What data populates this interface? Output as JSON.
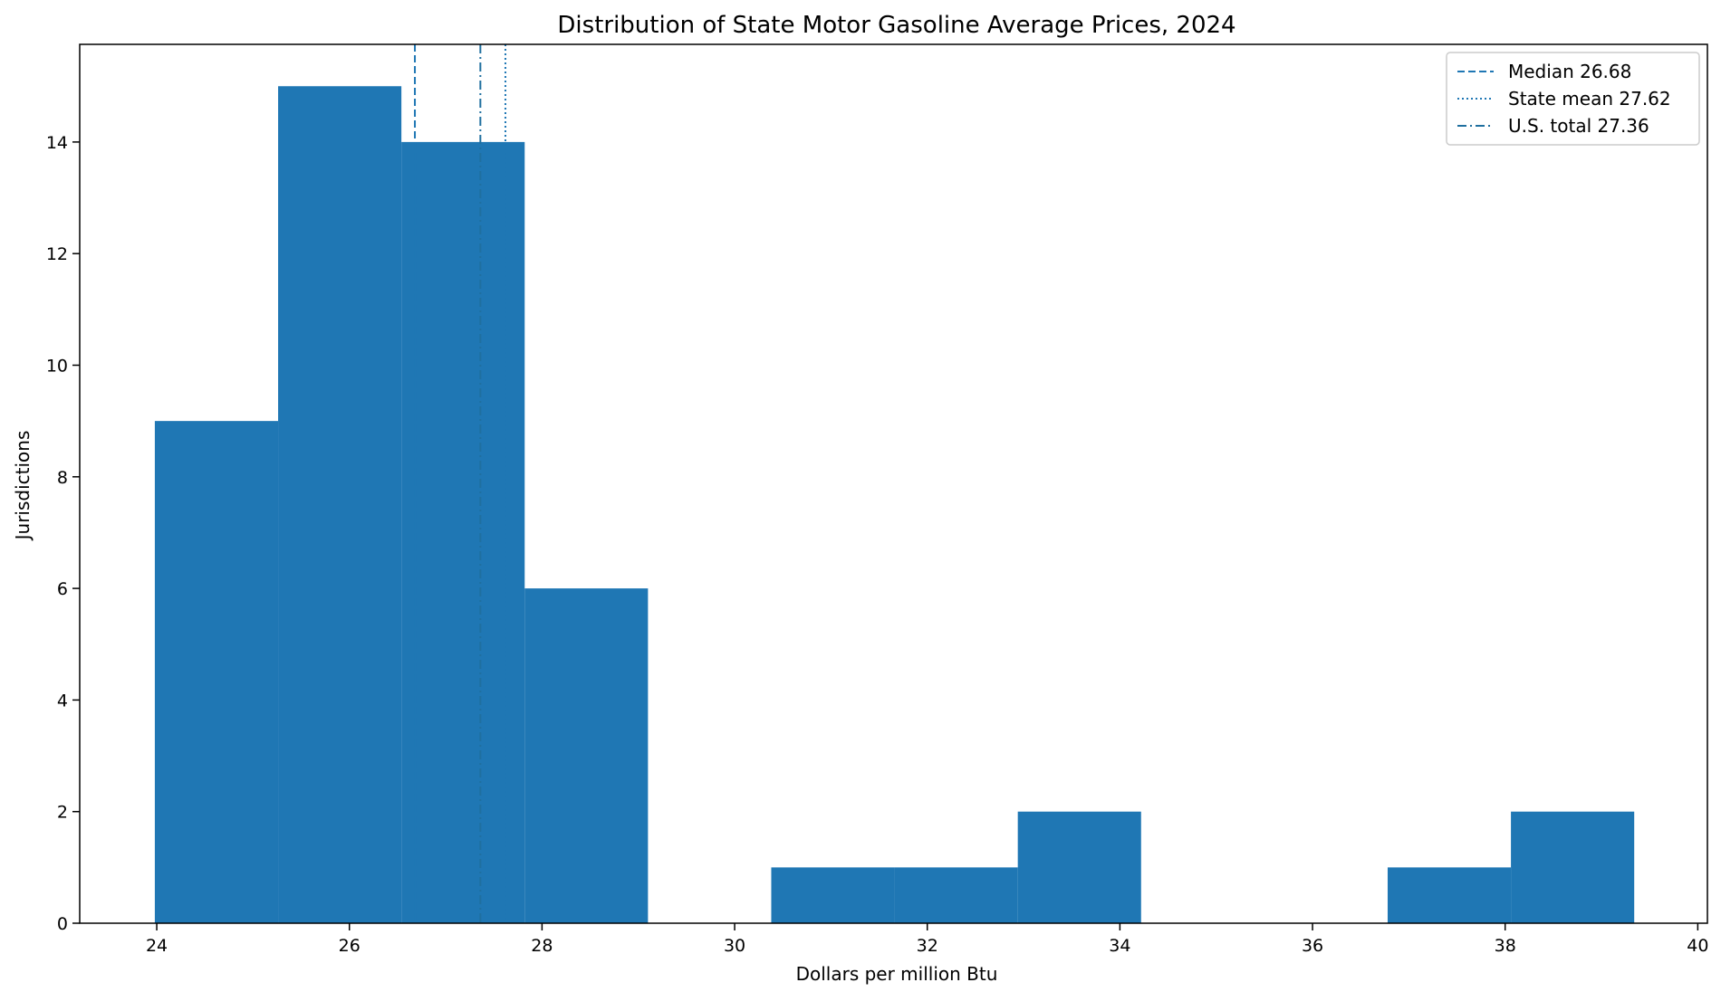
{
  "chart_data": {
    "type": "bar",
    "title": "Distribution of State Motor Gasoline Average Prices, 2024",
    "xlabel": "Dollars per million Btu",
    "ylabel": "Jurisdictions",
    "xlim": [
      23.2,
      40.1
    ],
    "ylim": [
      0,
      15.75
    ],
    "xticks": [
      24,
      26,
      28,
      30,
      32,
      34,
      36,
      38,
      40
    ],
    "yticks": [
      0,
      2,
      4,
      6,
      8,
      10,
      12,
      14
    ],
    "bins": {
      "edges": [
        23.98,
        25.26,
        26.54,
        27.82,
        29.1,
        30.38,
        31.66,
        32.94,
        34.22,
        35.5,
        36.78,
        38.06,
        39.34
      ],
      "counts": [
        9,
        15,
        14,
        6,
        0,
        1,
        1,
        2,
        0,
        0,
        1,
        2
      ]
    },
    "bar_color": "#1f77b4",
    "reference_lines": [
      {
        "label": "Median 26.68",
        "value": 26.68,
        "style": "dashed",
        "color": "#1f77b4"
      },
      {
        "label": "State mean 27.62",
        "value": 27.62,
        "style": "dotted",
        "color": "#1f77b4"
      },
      {
        "label": "U.S. total 27.36",
        "value": 27.36,
        "style": "dashdot",
        "color": "#1f6f9f"
      }
    ],
    "legend_position": "top-right",
    "grid": false
  }
}
